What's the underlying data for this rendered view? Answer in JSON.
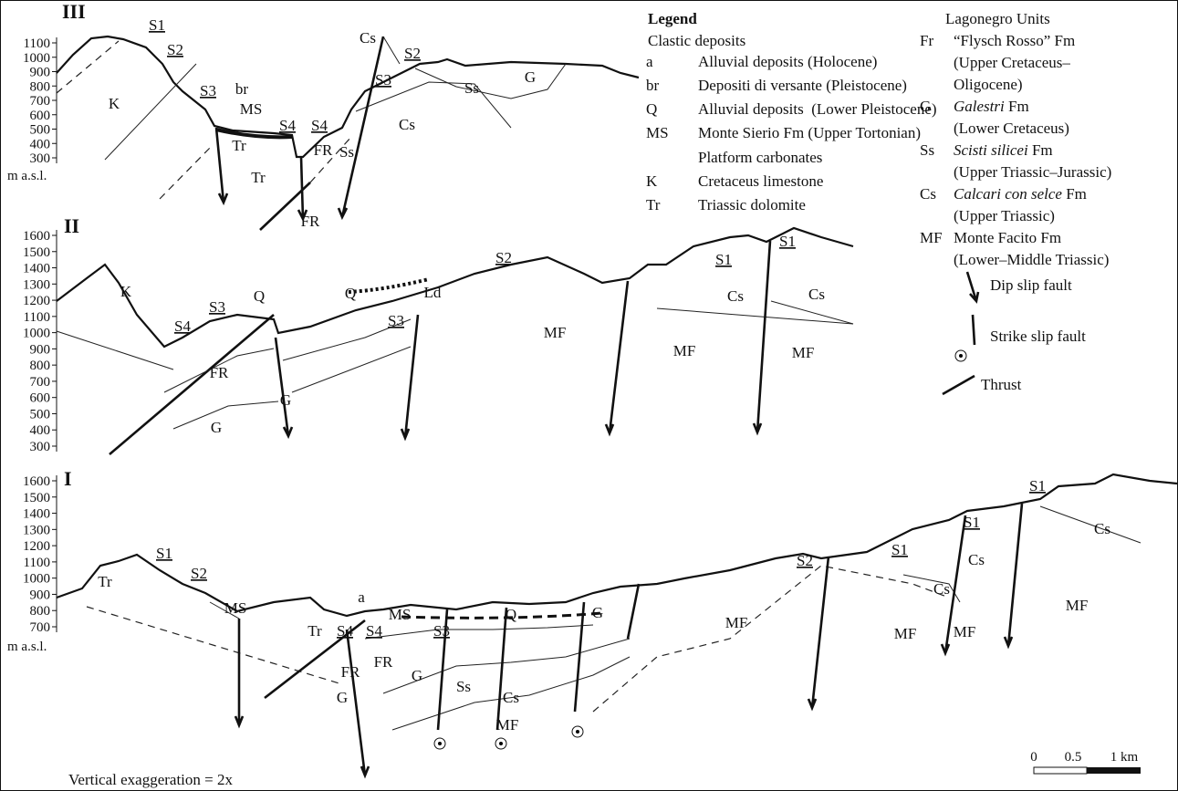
{
  "sections": [
    {
      "id": "III",
      "unit": "m a.s.l.",
      "yticks": [
        1100,
        1000,
        900,
        800,
        700,
        600,
        500,
        400,
        300
      ],
      "labels": [
        "S1",
        "S2",
        "S3",
        "br",
        "MS",
        "S4",
        "S4",
        "Cs",
        "S2",
        "S3",
        "K",
        "Tr",
        "Tr",
        "FR",
        "FR",
        "Ss",
        "Cs",
        "Ss",
        "G"
      ]
    },
    {
      "id": "II",
      "yticks": [
        1600,
        1500,
        1400,
        1300,
        1200,
        1100,
        1000,
        900,
        800,
        700,
        600,
        500,
        400,
        300
      ],
      "labels": [
        "K",
        "S4",
        "S3",
        "Q",
        "FR",
        "G",
        "G",
        "Q",
        "S3",
        "Ld",
        "S2",
        "MF",
        "MF",
        "S1",
        "Cs",
        "S1",
        "Cs",
        "MF"
      ]
    },
    {
      "id": "I",
      "unit": "m a.s.l.",
      "yticks": [
        1600,
        1500,
        1400,
        1300,
        1200,
        1100,
        1000,
        900,
        800,
        700
      ],
      "labels": [
        "S1",
        "S2",
        "MS",
        "Tr",
        "Tr",
        "S4",
        "S4",
        "a",
        "MS",
        "FR",
        "FR",
        "G",
        "G",
        "S3",
        "Q",
        "Ss",
        "Cs",
        "MF",
        "G",
        "S2",
        "MF",
        "S1",
        "Cs",
        "S1",
        "Cs",
        "MF",
        "MF",
        "MF",
        "S1",
        "Cs"
      ]
    }
  ],
  "legend": {
    "title": "Legend",
    "clastic": {
      "heading": "Clastic deposits",
      "items": [
        {
          "code": "a",
          "text": "Alluvial deposits (Holocene)"
        },
        {
          "code": "br",
          "text": "Depositi di versante (Pleistocene)"
        },
        {
          "code": "Q",
          "text": "Alluvial deposits  (Lower Pleistocene)"
        },
        {
          "code": "MS",
          "text": "Monte Sierio Fm (Upper Tortonian)"
        }
      ]
    },
    "platform": {
      "heading": "Platform carbonates",
      "items": [
        {
          "code": "K",
          "text": "Cretaceus limestone"
        },
        {
          "code": "Tr",
          "text": "Triassic dolomite"
        }
      ]
    },
    "lagonegro": {
      "heading": "Lagonegro Units",
      "items": [
        {
          "code": "Fr",
          "name": "“Flysch Rosso” Fm",
          "sub": [
            "(Upper Cretaceus–",
            "Oligocene)"
          ]
        },
        {
          "code": "G",
          "name_italic": "Galestri",
          "name": " Fm",
          "sub": [
            "(Lower Cretaceus)"
          ]
        },
        {
          "code": "Ss",
          "name_italic": "Scisti silicei",
          "name": " Fm",
          "sub": [
            "(Upper Triassic–Jurassic)"
          ]
        },
        {
          "code": "Cs",
          "name_italic": "Calcari con selce",
          "name": " Fm",
          "sub": [
            "(Upper Triassic)"
          ]
        },
        {
          "code": "MF",
          "name": "Monte Facito Fm",
          "sub": [
            "(Lower–Middle Triassic)"
          ]
        }
      ]
    },
    "symbols": [
      "Dip slip fault",
      "Strike slip fault",
      "Thrust"
    ]
  },
  "scale": [
    "0",
    "0.5",
    "1 km"
  ],
  "note": "Vertical exaggeration = 2x"
}
